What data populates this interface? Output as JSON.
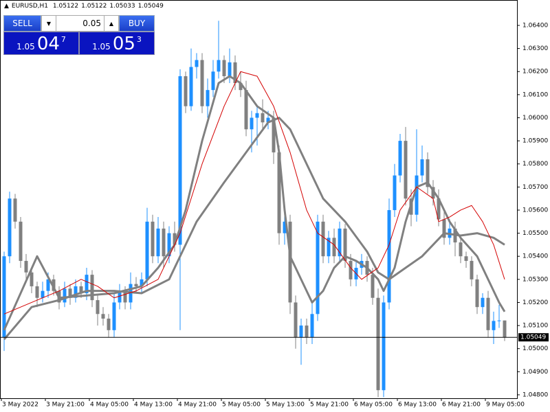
{
  "chart_data": {
    "type": "candlestick",
    "open": [
      1.0505,
      1.054,
      1.0565,
      1.0555,
      1.0538,
      1.0533,
      1.0527,
      1.0522,
      1.0525,
      1.053,
      1.0525,
      1.052,
      1.0526,
      1.0522,
      1.0527,
      1.0524,
      1.0532,
      1.0521,
      1.0515,
      1.0513,
      1.0508,
      1.052,
      1.0525,
      1.052,
      1.0528,
      1.0527,
      1.053,
      1.0555,
      1.054,
      1.0552,
      1.054,
      1.055,
      1.0545,
      1.0618,
      1.0605,
      1.0622,
      1.0625,
      1.0605,
      1.0612,
      1.062,
      1.0625,
      1.0618,
      1.0624,
      1.0615,
      1.0612,
      1.0595,
      1.06,
      1.0602,
      1.0598,
      1.06,
      1.0585,
      1.055,
      1.0555,
      1.052,
      1.0505,
      1.051,
      1.0505,
      1.0515,
      1.0555,
      1.054,
      1.0548,
      1.054,
      1.0552,
      1.0538,
      1.053,
      1.0535,
      1.0538,
      1.0532,
      1.0522,
      1.0482,
      1.052,
      1.056,
      1.0575,
      1.059,
      1.0565,
      1.0558,
      1.0575,
      1.0582,
      1.057,
      1.0565,
      1.0556,
      1.0548,
      1.0552,
      1.0546,
      1.054,
      1.0538,
      1.053,
      1.0518,
      1.0522,
      1.0508,
      1.0512,
      1.05122
    ],
    "high": [
      1.0542,
      1.0568,
      1.0567,
      1.0557,
      1.0541,
      1.0535,
      1.0529,
      1.0529,
      1.0533,
      1.0532,
      1.0527,
      1.0529,
      1.0528,
      1.053,
      1.0529,
      1.0535,
      1.0534,
      1.0523,
      1.0518,
      1.0515,
      1.0524,
      1.0528,
      1.0527,
      1.0533,
      1.0531,
      1.0533,
      1.0561,
      1.0558,
      1.0557,
      1.0555,
      1.0553,
      1.0555,
      1.0621,
      1.062,
      1.063,
      1.0628,
      1.0628,
      1.0617,
      1.0625,
      1.0642,
      1.0627,
      1.063,
      1.0627,
      1.062,
      1.0616,
      1.0603,
      1.0605,
      1.0608,
      1.0603,
      1.0603,
      1.0588,
      1.056,
      1.0558,
      1.0523,
      1.0513,
      1.0513,
      1.052,
      1.0558,
      1.0558,
      1.0551,
      1.0552,
      1.0555,
      1.0554,
      1.0541,
      1.0538,
      1.0541,
      1.054,
      1.0535,
      1.0526,
      1.0523,
      1.0565,
      1.058,
      1.0593,
      1.0596,
      1.0569,
      1.0595,
      1.0588,
      1.0585,
      1.0573,
      1.0569,
      1.056,
      1.0556,
      1.0555,
      1.0548,
      1.0542,
      1.054,
      1.0532,
      1.0524,
      1.0525,
      1.0516,
      1.0519,
      1.05122
    ],
    "low": [
      1.0499,
      1.0537,
      1.0552,
      1.0535,
      1.053,
      1.0524,
      1.0518,
      1.052,
      1.0522,
      1.0523,
      1.0517,
      1.0518,
      1.0519,
      1.052,
      1.0522,
      1.0521,
      1.0518,
      1.051,
      1.051,
      1.0505,
      1.0505,
      1.0517,
      1.0517,
      1.0517,
      1.0524,
      1.0524,
      1.0527,
      1.0537,
      1.0537,
      1.0535,
      1.0537,
      1.0542,
      1.0508,
      1.0602,
      1.0603,
      1.0617,
      1.0602,
      1.06,
      1.0609,
      1.0617,
      1.0615,
      1.0615,
      1.0612,
      1.0609,
      1.0592,
      1.0585,
      1.0588,
      1.0595,
      1.0595,
      1.058,
      1.0545,
      1.0545,
      1.0515,
      1.05,
      1.0493,
      1.0502,
      1.0502,
      1.0512,
      1.0537,
      1.0537,
      1.0537,
      1.0537,
      1.0535,
      1.0527,
      1.0527,
      1.0532,
      1.0529,
      1.0519,
      1.0479,
      1.0479,
      1.0517,
      1.0557,
      1.0572,
      1.0562,
      1.0553,
      1.0555,
      1.0572,
      1.0567,
      1.0562,
      1.0553,
      1.0545,
      1.0545,
      1.054,
      1.0537,
      1.0535,
      1.0527,
      1.0515,
      1.0515,
      1.0505,
      1.0502,
      1.0509,
      1.05033
    ],
    "close": [
      1.054,
      1.0565,
      1.0555,
      1.0538,
      1.0533,
      1.0527,
      1.0522,
      1.0525,
      1.053,
      1.0525,
      1.052,
      1.0526,
      1.0522,
      1.0527,
      1.0524,
      1.0532,
      1.0521,
      1.0515,
      1.0513,
      1.0508,
      1.052,
      1.0525,
      1.052,
      1.0528,
      1.0527,
      1.053,
      1.0555,
      1.054,
      1.0552,
      1.054,
      1.055,
      1.0545,
      1.0618,
      1.0605,
      1.0622,
      1.0625,
      1.0605,
      1.0612,
      1.062,
      1.0625,
      1.0618,
      1.0624,
      1.0615,
      1.0612,
      1.0595,
      1.06,
      1.0602,
      1.0598,
      1.06,
      1.0585,
      1.055,
      1.0555,
      1.052,
      1.0505,
      1.051,
      1.0505,
      1.0515,
      1.0555,
      1.054,
      1.0548,
      1.054,
      1.0552,
      1.0538,
      1.053,
      1.0535,
      1.0538,
      1.0532,
      1.0522,
      1.0482,
      1.052,
      1.056,
      1.0575,
      1.059,
      1.0565,
      1.0558,
      1.0575,
      1.0582,
      1.057,
      1.0565,
      1.0556,
      1.0548,
      1.0552,
      1.0546,
      1.054,
      1.0538,
      1.053,
      1.0518,
      1.0522,
      1.0508,
      1.0512,
      1.05122,
      1.05049
    ],
    "bull_color": "#1e90ff",
    "bear_color": "#808080",
    "lines": [
      {
        "color": "#808080",
        "width": 3,
        "x": [
          0,
          6,
          10,
          20,
          25,
          28,
          31,
          33,
          36,
          39,
          41,
          43,
          46,
          49,
          50,
          51,
          52,
          54,
          56,
          58,
          60,
          62,
          64,
          66,
          68,
          69,
          71,
          73,
          75,
          77,
          79,
          81,
          83,
          86,
          88,
          90,
          91
        ],
        "values": [
          1.0508,
          1.054,
          1.0522,
          1.0524,
          1.0527,
          1.0535,
          1.0545,
          1.056,
          1.059,
          1.0615,
          1.0618,
          1.0615,
          1.0605,
          1.06,
          1.0585,
          1.056,
          1.054,
          1.053,
          1.052,
          1.0525,
          1.0535,
          1.054,
          1.0538,
          1.0535,
          1.053,
          1.0525,
          1.0535,
          1.0555,
          1.057,
          1.0572,
          1.0565,
          1.0555,
          1.0548,
          1.054,
          1.053,
          1.052,
          1.0516
        ]
      },
      {
        "color": "#808080",
        "width": 3,
        "x": [
          0,
          5,
          10,
          15,
          20,
          25,
          30,
          32,
          35,
          40,
          44,
          48,
          50,
          52,
          55,
          58,
          62,
          66,
          68,
          70,
          73,
          76,
          78,
          80,
          83,
          86,
          89,
          91
        ],
        "values": [
          1.0504,
          1.0518,
          1.0521,
          1.0525,
          1.0525,
          1.0524,
          1.053,
          1.054,
          1.0555,
          1.0572,
          1.0585,
          1.0598,
          1.06,
          1.0595,
          1.058,
          1.0565,
          1.0555,
          1.0542,
          1.0533,
          1.053,
          1.0535,
          1.054,
          1.0545,
          1.055,
          1.0549,
          1.055,
          1.0548,
          1.0545
        ]
      },
      {
        "color": "#d40000",
        "width": 1,
        "x": [
          0,
          5,
          10,
          14,
          17,
          20,
          24,
          28,
          32,
          36,
          40,
          43,
          46,
          49,
          52,
          55,
          57,
          60,
          63,
          65,
          68,
          70,
          72,
          75,
          78,
          79,
          81,
          83,
          85,
          87,
          89,
          91
        ],
        "values": [
          1.0515,
          1.052,
          1.0525,
          1.053,
          1.0527,
          1.0522,
          1.0525,
          1.053,
          1.055,
          1.058,
          1.0605,
          1.062,
          1.0618,
          1.0605,
          1.0585,
          1.056,
          1.055,
          1.0545,
          1.0535,
          1.053,
          1.0535,
          1.0545,
          1.056,
          1.057,
          1.0565,
          1.0555,
          1.0557,
          1.056,
          1.0562,
          1.0555,
          1.0545,
          1.053
        ]
      }
    ],
    "current_price": 1.05049,
    "xlim": [
      -0.75,
      93.25
    ],
    "xticks": [
      {
        "value": 0,
        "label": "3 May 2022"
      },
      {
        "value": 8,
        "label": "3 May 21:00"
      },
      {
        "value": 16,
        "label": "4 May 05:00"
      },
      {
        "value": 24,
        "label": "4 May 13:00"
      },
      {
        "value": 32,
        "label": "4 May 21:00"
      },
      {
        "value": 40,
        "label": "5 May 05:00"
      },
      {
        "value": 48,
        "label": "5 May 13:00"
      },
      {
        "value": 56,
        "label": "5 May 21:00"
      },
      {
        "value": 64,
        "label": "6 May 05:00"
      },
      {
        "value": 72,
        "label": "6 May 13:00"
      },
      {
        "value": 80,
        "label": "6 May 21:00"
      },
      {
        "value": 88,
        "label": "9 May 05:00"
      }
    ],
    "ylim": [
      1.04785,
      1.0651
    ],
    "yticks": [
      {
        "value": 1.048,
        "label": "1.04800"
      },
      {
        "value": 1.049,
        "label": "1.04900"
      },
      {
        "value": 1.05,
        "label": "1.05000"
      },
      {
        "value": 1.051,
        "label": "1.05100"
      },
      {
        "value": 1.052,
        "label": "1.05200"
      },
      {
        "value": 1.053,
        "label": "1.05300"
      },
      {
        "value": 1.054,
        "label": "1.05400"
      },
      {
        "value": 1.055,
        "label": "1.05500"
      },
      {
        "value": 1.056,
        "label": "1.05600"
      },
      {
        "value": 1.057,
        "label": "1.05700"
      },
      {
        "value": 1.058,
        "label": "1.05800"
      },
      {
        "value": 1.059,
        "label": "1.05900"
      },
      {
        "value": 1.06,
        "label": "1.06000"
      },
      {
        "value": 1.061,
        "label": "1.06100"
      },
      {
        "value": 1.062,
        "label": "1.06200"
      },
      {
        "value": 1.063,
        "label": "1.06300"
      },
      {
        "value": 1.064,
        "label": "1.06400"
      }
    ]
  },
  "header": {
    "symbol": "EURUSD,H1",
    "ohlc": [
      1.05122,
      1.05122,
      1.05033,
      1.05049
    ]
  },
  "trade_panel": {
    "sell": "SELL",
    "buy": "BUY",
    "volume": 0.05,
    "sell_price": [
      "1.05",
      "04",
      "7"
    ],
    "buy_price": [
      "1.05",
      "05",
      "3"
    ]
  }
}
